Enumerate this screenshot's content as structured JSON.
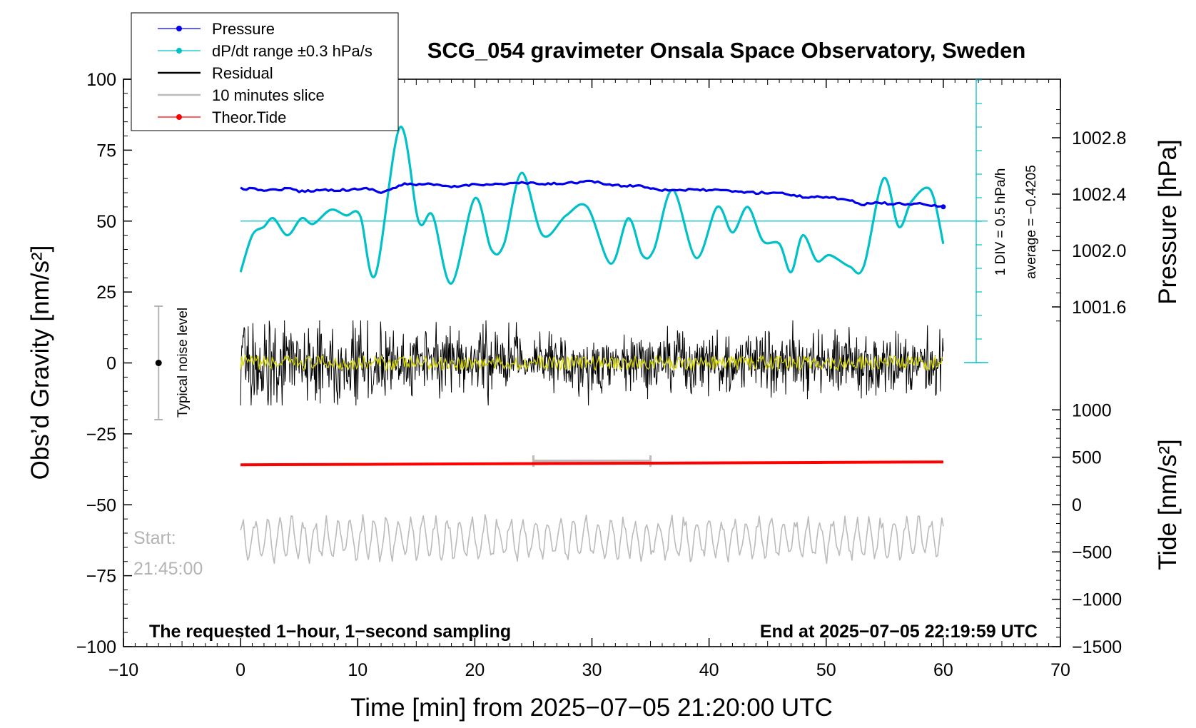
{
  "colors": {
    "pressure": "#0000ee",
    "dpdt": "#00c0c8",
    "residual": "#000000",
    "residual_overlay": "#d4d400",
    "slice": "#bbbbbb",
    "tide": "#ff0000",
    "noise_bar": "#b4b4b4"
  },
  "legend": {
    "position": "top-left",
    "items": [
      {
        "key": "pressure",
        "label": "Pressure",
        "marker": "dot"
      },
      {
        "key": "dpdt",
        "label": "dP/dt range ±0.3 hPa/s",
        "marker": "dot"
      },
      {
        "key": "residual",
        "label": "Residual",
        "marker": "line"
      },
      {
        "key": "slice",
        "label": "10 minutes slice",
        "marker": "line"
      },
      {
        "key": "tide",
        "label": "Theor.Tide",
        "marker": "dot"
      }
    ]
  },
  "annotations": {
    "noise": "Typical noise level",
    "scale": "1 DIV = 0.5 hPa/h",
    "average": "average = −0.4205",
    "start_label": "Start:",
    "start_time": "21:45:00",
    "note_left": "The requested 1−hour, 1−second sampling",
    "note_right": "End at 2025−07−05 22:19:59 UTC"
  },
  "chart_data": {
    "type": "line",
    "title": "SCG_054 gravimeter Onsala Space Observatory, Sweden",
    "xlabel": "Time [min] from 2025−07−05 21:20:00 UTC",
    "ylabel": "Obs’d Gravity [nm/s²]",
    "ylabel_right_top": "Pressure [hPa]",
    "ylabel_right_bottom": "Tide [nm/s²]",
    "xlim": [
      -10,
      70
    ],
    "ylim": [
      -100,
      100
    ],
    "x_ticks": [
      -10,
      0,
      10,
      20,
      30,
      40,
      50,
      60,
      70
    ],
    "x_tick_labels": [
      "−10",
      "0",
      "10",
      "20",
      "30",
      "40",
      "50",
      "60",
      "70"
    ],
    "y_ticks": [
      -100,
      -75,
      -50,
      -25,
      0,
      25,
      50,
      75,
      100
    ],
    "y_tick_labels": [
      "−100",
      "−75",
      "−50",
      "−25",
      "0",
      "25",
      "50",
      "75",
      "100"
    ],
    "pressure_axis": {
      "ticks": [
        1001.6,
        1002.0,
        1002.4,
        1002.8
      ],
      "tick_labels": [
        "1001.6",
        "1002.0",
        "1002.4",
        "1002.8"
      ]
    },
    "tide_axis": {
      "ylim": [
        -1500,
        1000
      ],
      "ticks": [
        -1500,
        -1000,
        -500,
        0,
        500,
        1000
      ],
      "tick_labels": [
        "−1500",
        "−1000",
        "−500",
        "0",
        "500",
        "1000"
      ]
    },
    "dpdt_zero_line_y": 50,
    "series": [
      {
        "name": "Pressure",
        "unit": "hPa",
        "x": [
          0,
          2,
          3,
          4,
          5,
          7,
          9,
          11,
          12,
          13,
          14,
          16,
          18,
          20,
          22,
          24,
          26,
          28,
          30,
          32,
          34,
          36,
          38,
          40,
          42,
          44,
          46,
          48,
          50,
          52,
          53,
          54,
          56,
          58,
          60
        ],
        "values": [
          1002.44,
          1002.43,
          1002.43,
          1002.44,
          1002.42,
          1002.43,
          1002.43,
          1002.44,
          1002.41,
          1002.44,
          1002.47,
          1002.47,
          1002.45,
          1002.47,
          1002.47,
          1002.48,
          1002.47,
          1002.48,
          1002.49,
          1002.46,
          1002.46,
          1002.43,
          1002.43,
          1002.43,
          1002.42,
          1002.41,
          1002.41,
          1002.38,
          1002.38,
          1002.36,
          1002.32,
          1002.34,
          1002.33,
          1002.33,
          1002.31
        ]
      },
      {
        "name": "dP/dt range ±0.3 hPa/s",
        "x": [
          0,
          1,
          2,
          2.8,
          4,
          5.2,
          6.2,
          7.7,
          9,
          10.2,
          11.5,
          13.6,
          15.2,
          16.4,
          18,
          20,
          21.4,
          22.5,
          24,
          25.8,
          27.8,
          29.6,
          31.6,
          33.1,
          34.3,
          35.3,
          36.9,
          38.9,
          40.7,
          42,
          43.3,
          44.6,
          46,
          47,
          48,
          49.2,
          50.3,
          52,
          53.2,
          54.9,
          56.2,
          57.3,
          58.9,
          60
        ],
        "values": [
          32,
          45,
          48,
          51,
          45,
          51,
          49,
          54,
          52,
          52,
          31,
          83,
          50,
          52,
          28,
          58,
          40,
          42,
          67,
          45,
          52,
          55,
          35,
          51,
          38,
          40,
          61,
          37,
          55,
          46,
          55,
          43,
          42,
          32,
          45,
          36,
          38,
          34,
          34,
          65,
          48,
          57,
          61,
          42
        ]
      },
      {
        "name": "Residual",
        "amplitude_nm_s2": 8,
        "x_range": [
          0,
          60
        ],
        "sampling": "1 second"
      },
      {
        "name": "Theor.Tide",
        "unit": "nm/s²",
        "x": [
          0,
          10,
          20,
          30,
          40,
          50,
          60
        ],
        "values": [
          420,
          425,
          430,
          435,
          440,
          445,
          450
        ]
      },
      {
        "name": "10 minutes slice",
        "span": [
          25,
          35
        ],
        "baseline_y": -62,
        "amplitude_nm_s2": 7
      }
    ],
    "noise_bar": {
      "x": -7,
      "center": 0,
      "low": -20,
      "high": 20
    }
  }
}
